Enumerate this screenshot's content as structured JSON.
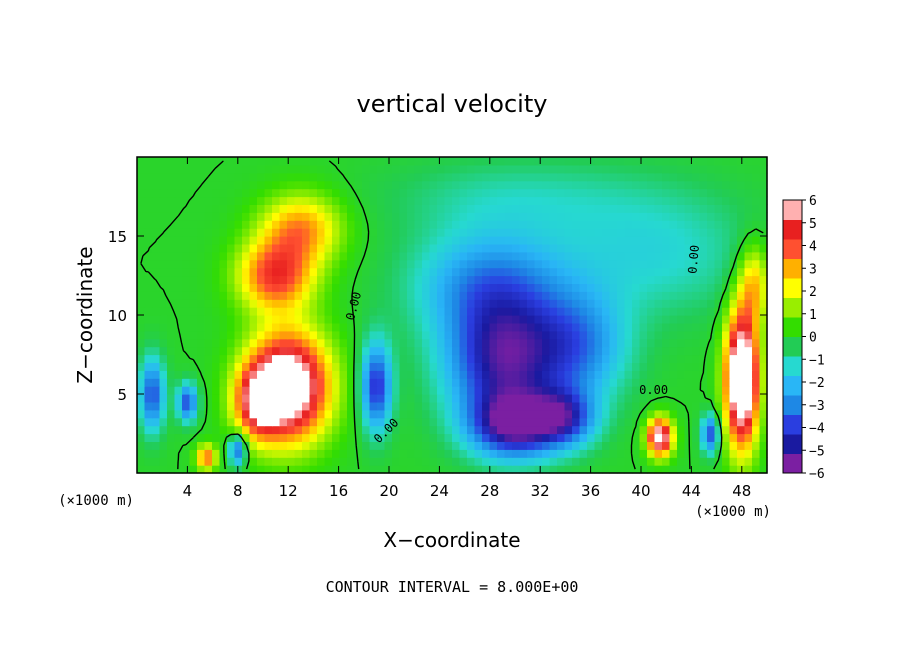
{
  "chart_data": {
    "type": "heatmap",
    "title": "vertical velocity",
    "xlabel": "X−coordinate",
    "ylabel": "Z−coordinate",
    "x_unit": "(×1000 m)",
    "y_unit": "(×1000 m)",
    "xlim": [
      0,
      50
    ],
    "ylim": [
      0,
      20
    ],
    "x_ticks": [
      4,
      8,
      12,
      16,
      20,
      24,
      28,
      32,
      36,
      40,
      44,
      48
    ],
    "y_ticks": [
      5,
      10,
      15
    ],
    "colorbar": {
      "ticks": [
        "6",
        "5",
        "4",
        "3",
        "2",
        "1",
        "0",
        "−1",
        "−2",
        "−3",
        "−4",
        "−5",
        "−6"
      ],
      "min": -6,
      "max": 6,
      "colors": [
        "#7b1fa2",
        "#1a1aa0",
        "#2a3ee0",
        "#1e88e5",
        "#29b6f6",
        "#26d9d0",
        "#22cc55",
        "#33dd00",
        "#99ee00",
        "#ffff00",
        "#ffb000",
        "#ff5030",
        "#e82020",
        "#ffb0b0"
      ]
    },
    "contour_label": "0.00",
    "footnote": "CONTOUR INTERVAL = 8.000E+00",
    "features": [
      {
        "x": 12,
        "z": 5.5,
        "value": 8,
        "sx": 3.2,
        "sz": 3.4
      },
      {
        "x": 11,
        "z": 12.5,
        "value": 4.5,
        "sx": 3.0,
        "sz": 2.2
      },
      {
        "x": 13,
        "z": 15.5,
        "value": 3.5,
        "sx": 3.2,
        "sz": 2.2
      },
      {
        "x": 9.5,
        "z": 4.5,
        "value": 4,
        "sx": 1.8,
        "sz": 2.2
      },
      {
        "x": 48,
        "z": 6,
        "value": 9,
        "sx": 1.3,
        "sz": 4.2
      },
      {
        "x": 49,
        "z": 12,
        "value": 3,
        "sx": 1.2,
        "sz": 2.5
      },
      {
        "x": 41.5,
        "z": 2.3,
        "value": 7,
        "sx": 1.0,
        "sz": 1.2
      },
      {
        "x": 29,
        "z": 7,
        "value": -5,
        "sx": 4.5,
        "sz": 4.0
      },
      {
        "x": 30,
        "z": 3,
        "value": -5,
        "sx": 3.5,
        "sz": 2.0
      },
      {
        "x": 28,
        "z": 12,
        "value": -3,
        "sx": 6.0,
        "sz": 3.5
      },
      {
        "x": 35,
        "z": 8,
        "value": -3,
        "sx": 4.0,
        "sz": 3.5
      },
      {
        "x": 34,
        "z": 3.5,
        "value": -3.5,
        "sx": 2.5,
        "sz": 1.8
      },
      {
        "x": 19,
        "z": 5.5,
        "value": -4.5,
        "sx": 1.2,
        "sz": 2.8
      },
      {
        "x": 1.2,
        "z": 5,
        "value": -4,
        "sx": 1.0,
        "sz": 2.3
      },
      {
        "x": 4,
        "z": 4.5,
        "value": -4,
        "sx": 0.8,
        "sz": 1.2
      },
      {
        "x": 8,
        "z": 1.5,
        "value": -4,
        "sx": 0.7,
        "sz": 1.0
      },
      {
        "x": 45.5,
        "z": 2.5,
        "value": -4,
        "sx": 0.7,
        "sz": 1.2
      },
      {
        "x": 41,
        "z": 14,
        "value": -1.5,
        "sx": 8.0,
        "sz": 4.0
      },
      {
        "x": 5.5,
        "z": 1,
        "value": 4,
        "sx": 0.8,
        "sz": 0.8
      },
      {
        "x": 30,
        "z": 17.5,
        "value": -1,
        "sx": 10.0,
        "sz": 2.5
      }
    ]
  }
}
